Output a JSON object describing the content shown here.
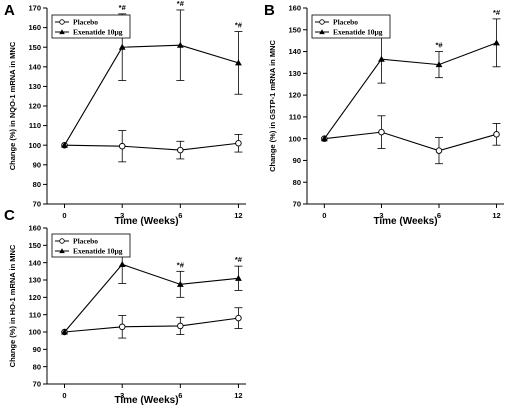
{
  "chart_data": [
    {
      "type": "line",
      "panel_label": "A",
      "ylabel": "Change (%) in NQO-1 mRNA in MNC",
      "xlabel": "Time (Weeks)",
      "x_ticks": [
        "0",
        "3",
        "6",
        "12"
      ],
      "y_ticks": [
        "70",
        "80",
        "90",
        "100",
        "110",
        "120",
        "130",
        "140",
        "150",
        "160",
        "170"
      ],
      "ylim": [
        70,
        170
      ],
      "series": [
        {
          "name": "Placebo",
          "marker": "open-circle",
          "values": [
            100,
            99.5,
            97.5,
            101
          ],
          "errors": [
            0,
            8,
            4.5,
            4.5
          ]
        },
        {
          "name": "Exenatide 10μg",
          "marker": "filled-triangle",
          "values": [
            100,
            150,
            151,
            142
          ],
          "errors": [
            0,
            17,
            18,
            16
          ]
        }
      ],
      "annotations": [
        "*#",
        "*#",
        "*#"
      ],
      "annotation_x_index": [
        1,
        2,
        3
      ]
    },
    {
      "type": "line",
      "panel_label": "B",
      "ylabel": "Change (%) in GSTP-1 mRNA in MNC",
      "xlabel": "Time (Weeks)",
      "x_ticks": [
        "0",
        "3",
        "6",
        "12"
      ],
      "y_ticks": [
        "70",
        "80",
        "90",
        "100",
        "110",
        "120",
        "130",
        "140",
        "150",
        "160"
      ],
      "ylim": [
        70,
        160
      ],
      "series": [
        {
          "name": "Placebo",
          "marker": "open-circle",
          "values": [
            100,
            103,
            94.5,
            102
          ],
          "errors": [
            0,
            7.5,
            6,
            5
          ]
        },
        {
          "name": "Exenatide 10μg",
          "marker": "filled-triangle",
          "values": [
            100,
            136.5,
            134,
            144
          ],
          "errors": [
            0,
            11,
            6,
            11
          ]
        }
      ],
      "annotations": [
        "*#",
        "*#",
        "*#"
      ],
      "annotation_x_index": [
        1,
        2,
        3
      ]
    },
    {
      "type": "line",
      "panel_label": "C",
      "ylabel": "Change (%) in HO-1 mRNA in MNC",
      "xlabel": "Time (Weeks)",
      "x_ticks": [
        "0",
        "3",
        "6",
        "12"
      ],
      "y_ticks": [
        "70",
        "80",
        "90",
        "100",
        "110",
        "120",
        "130",
        "140",
        "150",
        "160"
      ],
      "ylim": [
        70,
        160
      ],
      "series": [
        {
          "name": "Placebo",
          "marker": "open-circle",
          "values": [
            100,
            103,
            103.5,
            108
          ],
          "errors": [
            0,
            6.5,
            5,
            6
          ]
        },
        {
          "name": "Exenatide 10μg",
          "marker": "filled-triangle",
          "values": [
            100,
            139,
            127.5,
            131
          ],
          "errors": [
            0,
            11,
            7.5,
            7
          ]
        }
      ],
      "annotations": [
        "*#",
        "*#",
        "*#"
      ],
      "annotation_x_index": [
        1,
        2,
        3
      ]
    }
  ]
}
